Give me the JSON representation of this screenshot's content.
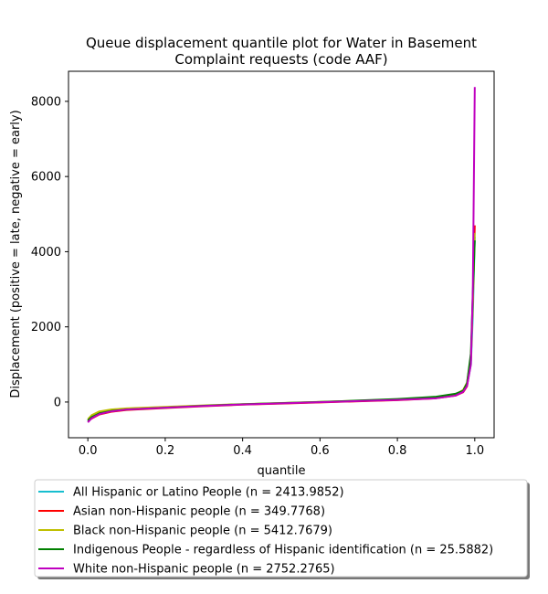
{
  "chart_data": {
    "type": "line",
    "title": "Queue displacement quantile plot for Water in Basement\nComplaint  requests (code AAF)",
    "xlabel": "quantile",
    "ylabel": "Displacement (positive = late, negative = early)",
    "xlim": [
      -0.05,
      1.05
    ],
    "ylim": [
      -950,
      8800
    ],
    "xticks": [
      0.0,
      0.2,
      0.4,
      0.6,
      0.8,
      1.0
    ],
    "xtick_labels": [
      "0.0",
      "0.2",
      "0.4",
      "0.6",
      "0.8",
      "1.0"
    ],
    "yticks": [
      0,
      2000,
      4000,
      6000,
      8000
    ],
    "ytick_labels": [
      "0",
      "2000",
      "4000",
      "6000",
      "8000"
    ],
    "grid": false,
    "legend_position": "bottom (below plot)",
    "series": [
      {
        "name": "All Hispanic or Latino People (n = 2413.9852)",
        "color": "#17becf",
        "x": [
          0.0,
          0.01,
          0.03,
          0.06,
          0.1,
          0.2,
          0.3,
          0.4,
          0.5,
          0.6,
          0.7,
          0.8,
          0.9,
          0.95,
          0.97,
          0.98,
          0.99,
          0.995,
          1.0
        ],
        "y": [
          -520,
          -420,
          -300,
          -230,
          -190,
          -140,
          -100,
          -60,
          -30,
          0,
          30,
          60,
          110,
          180,
          280,
          450,
          1000,
          2300,
          4400
        ]
      },
      {
        "name": "Asian non-Hispanic people (n = 349.7768)",
        "color": "#ff0000",
        "x": [
          0.0,
          0.01,
          0.03,
          0.06,
          0.1,
          0.2,
          0.3,
          0.4,
          0.5,
          0.6,
          0.7,
          0.8,
          0.9,
          0.95,
          0.97,
          0.98,
          0.99,
          0.995,
          1.0
        ],
        "y": [
          -500,
          -440,
          -330,
          -260,
          -210,
          -160,
          -110,
          -70,
          -40,
          -10,
          20,
          50,
          100,
          170,
          260,
          420,
          1100,
          2700,
          4700
        ]
      },
      {
        "name": "Black non-Hispanic people (n = 5412.7679)",
        "color": "#bfbf00",
        "x": [
          0.0,
          0.01,
          0.03,
          0.06,
          0.1,
          0.2,
          0.3,
          0.4,
          0.5,
          0.6,
          0.7,
          0.8,
          0.9,
          0.95,
          0.97,
          0.98,
          0.99,
          0.995,
          1.0
        ],
        "y": [
          -460,
          -350,
          -250,
          -200,
          -170,
          -130,
          -90,
          -55,
          -25,
          5,
          35,
          70,
          120,
          200,
          320,
          520,
          1200,
          2600,
          4500
        ]
      },
      {
        "name": "Indigenous People - regardless of Hispanic identification (n = 25.5882)",
        "color": "#008000",
        "x": [
          0.0,
          0.01,
          0.03,
          0.06,
          0.1,
          0.2,
          0.3,
          0.4,
          0.5,
          0.6,
          0.7,
          0.8,
          0.9,
          0.95,
          0.97,
          0.98,
          0.99,
          0.995,
          1.0
        ],
        "y": [
          -490,
          -400,
          -300,
          -240,
          -200,
          -150,
          -100,
          -60,
          -30,
          0,
          40,
          80,
          140,
          220,
          300,
          500,
          1300,
          2900,
          4300
        ]
      },
      {
        "name": "White non-Hispanic people (n = 2752.2765)",
        "color": "#bf00bf",
        "x": [
          0.0,
          0.01,
          0.03,
          0.06,
          0.1,
          0.2,
          0.3,
          0.4,
          0.5,
          0.6,
          0.7,
          0.8,
          0.9,
          0.95,
          0.97,
          0.98,
          0.99,
          0.995,
          1.0
        ],
        "y": [
          -540,
          -430,
          -320,
          -250,
          -200,
          -150,
          -105,
          -65,
          -35,
          -5,
          25,
          55,
          100,
          170,
          270,
          430,
          1000,
          3000,
          8380
        ]
      }
    ]
  }
}
